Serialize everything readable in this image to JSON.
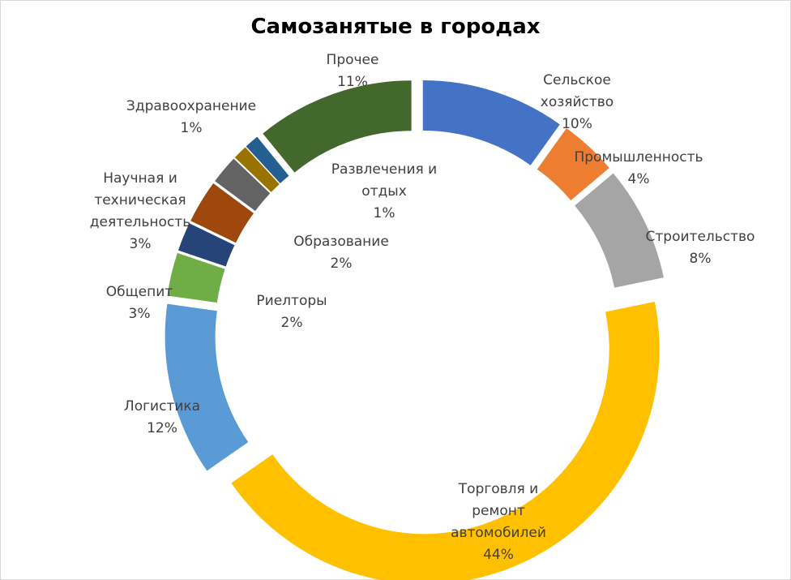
{
  "chart_data": {
    "type": "pie",
    "subtype": "exploded-donut",
    "title": "Самозанятые в городах",
    "legend": "none",
    "slices": [
      {
        "name": "Сельское хозяйство",
        "label_lines": [
          "Сельское",
          "хозяйство"
        ],
        "value": 10,
        "value_label": "10%",
        "color": "#4472C4"
      },
      {
        "name": "Промышленность",
        "label_lines": [
          "Промышленность"
        ],
        "value": 4,
        "value_label": "4%",
        "color": "#ED7D31"
      },
      {
        "name": "Строительство",
        "label_lines": [
          "Строительство"
        ],
        "value": 8,
        "value_label": "8%",
        "color": "#A5A5A5"
      },
      {
        "name": "Торговля и ремонт автомобилей",
        "label_lines": [
          "Торговля и",
          "ремонт",
          "автомобилей"
        ],
        "value": 44,
        "value_label": "44%",
        "color": "#FFC000"
      },
      {
        "name": "Логистика",
        "label_lines": [
          "Логистика"
        ],
        "value": 12,
        "value_label": "12%",
        "color": "#5B9BD5"
      },
      {
        "name": "Общепит",
        "label_lines": [
          "Общепит"
        ],
        "value": 3,
        "value_label": "3%",
        "color": "#70AD47"
      },
      {
        "name": "Риелторы",
        "label_lines": [
          "Риелторы"
        ],
        "value": 2,
        "value_label": "2%",
        "color": "#264478"
      },
      {
        "name": "Научная и техническая деятельность",
        "label_lines": [
          "Научная и",
          "техническая",
          "деятельность"
        ],
        "value": 3,
        "value_label": "3%",
        "color": "#9E480E"
      },
      {
        "name": "Образование",
        "label_lines": [
          "Образование"
        ],
        "value": 2,
        "value_label": "2%",
        "color": "#636363"
      },
      {
        "name": "Развлечения и отдых",
        "label_lines": [
          "Развлечения и",
          "отдых"
        ],
        "value": 1,
        "value_label": "1%",
        "color": "#997300"
      },
      {
        "name": "Здравоохранение",
        "label_lines": [
          "Здравоохранение"
        ],
        "value": 1,
        "value_label": "1%",
        "color": "#255E91"
      },
      {
        "name": "Прочее",
        "label_lines": [
          "Прочее"
        ],
        "value": 11,
        "value_label": "11%",
        "color": "#43682B"
      }
    ]
  }
}
